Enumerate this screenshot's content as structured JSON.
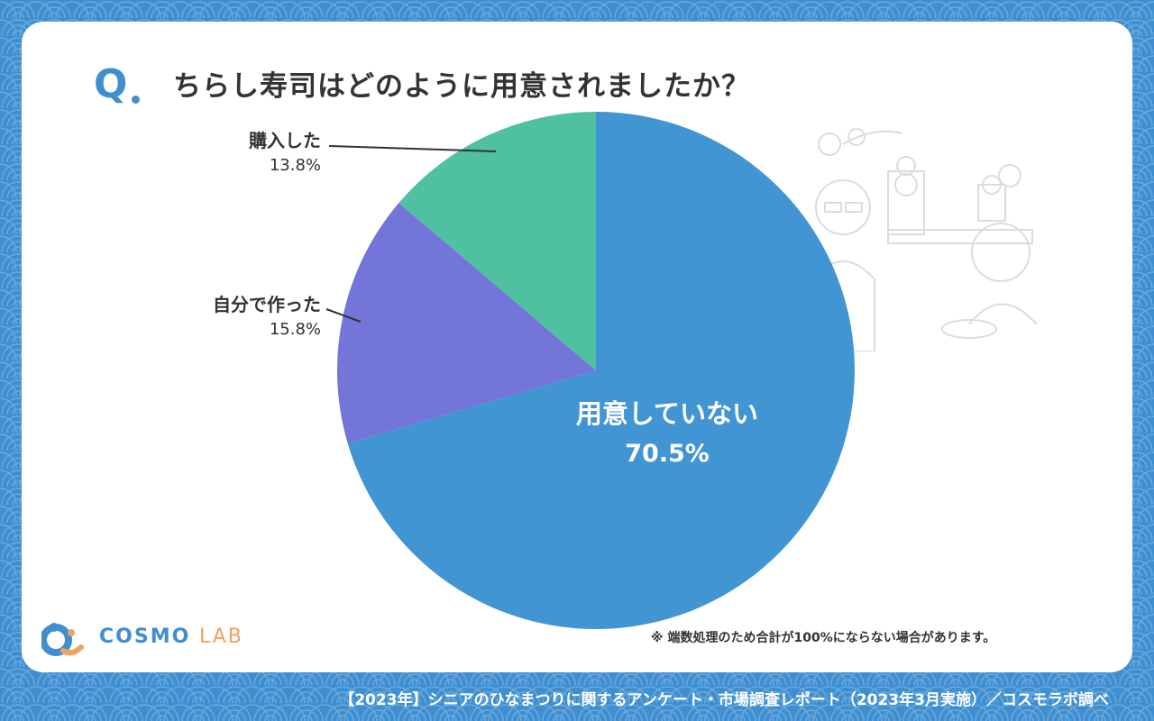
{
  "question": {
    "mark": "Q",
    "text": "ちらし寿司はどのように用意されましたか？"
  },
  "chart_data": {
    "type": "pie",
    "title": "ちらし寿司はどのように用意されましたか？",
    "slices": [
      {
        "label": "用意していない",
        "value": 70.5,
        "value_text": "70.5%",
        "color": "#4195d3"
      },
      {
        "label": "自分で作った",
        "value": 15.8,
        "value_text": "15.8%",
        "color": "#7375d8"
      },
      {
        "label": "購入した",
        "value": 13.8,
        "value_text": "13.8%",
        "color": "#4fc1a0"
      }
    ]
  },
  "labels": {
    "purchased_name": "購入した",
    "purchased_pct": "13.8%",
    "homemade_name": "自分で作った",
    "homemade_pct": "15.8%",
    "not_prepared_name": "用意していない",
    "not_prepared_pct": "70.5%"
  },
  "note": "※ 端数処理のため合計が100%にならない場合があります。",
  "logo": {
    "main": "COSMO",
    "sub": "LAB"
  },
  "footer": "【2023年】シニアのひなまつりに関するアンケート・市場調査レポート（2023年3月実施）／コスモラボ調べ",
  "colors": {
    "background": "#3f8fd0",
    "card": "#ffffff",
    "accent": "#3f8fd0",
    "logo_sub": "#f0a25e"
  }
}
